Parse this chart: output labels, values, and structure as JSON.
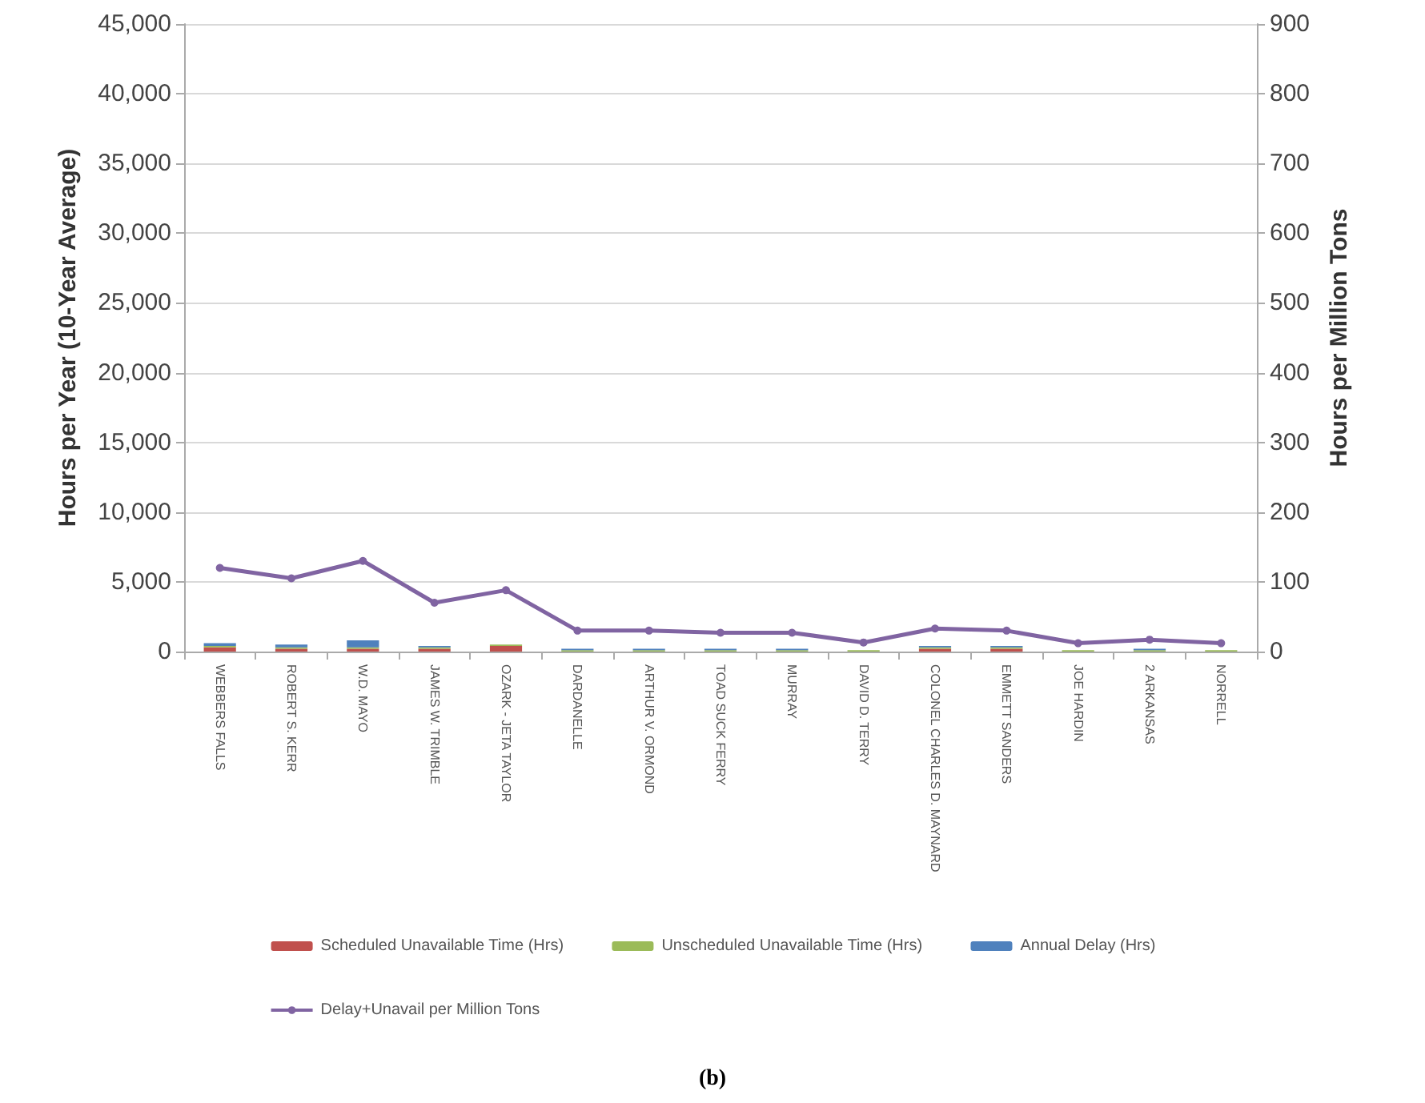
{
  "chart_data": {
    "type": "bar",
    "stacked": true,
    "ylabel": "Hours per Year (10-Year Average)",
    "y2label": "Hours per Million Tons",
    "categories": [
      "WEBBERS FALLS",
      "ROBERT S. KERR",
      "W.D. MAYO",
      "JAMES W. TRIMBLE",
      "OZARK - JETA TAYLOR",
      "DARDANELLE",
      "ARTHUR V. ORMOND",
      "TOAD SUCK FERRY",
      "MURRAY",
      "DAVID D. TERRY",
      "COLONEL CHARLES D. MAYNARD",
      "EMMETT SANDERS",
      "JOE HARDIN",
      "2 ARKANSAS",
      "NORRELL"
    ],
    "series": [
      {
        "name": "Scheduled Unavailable Time (Hrs)",
        "color": "#c0504d",
        "values": [
          300,
          200,
          200,
          200,
          400,
          0,
          0,
          0,
          0,
          0,
          200,
          200,
          0,
          0,
          0
        ]
      },
      {
        "name": "Unscheduled Unavailable Time (Hrs)",
        "color": "#9bbb59",
        "values": [
          100,
          100,
          100,
          100,
          100,
          100,
          100,
          100,
          100,
          100,
          100,
          100,
          100,
          100,
          100
        ]
      },
      {
        "name": "Annual Delay (Hrs)",
        "color": "#4f81bd",
        "values": [
          200,
          200,
          500,
          100,
          0,
          100,
          100,
          100,
          100,
          0,
          100,
          100,
          0,
          100,
          0
        ]
      },
      {
        "name": "Delay+Unavail per Million Tons",
        "type": "line",
        "axis": "y2",
        "color": "#8064a2",
        "values": [
          120,
          105,
          130,
          70,
          88,
          30,
          30,
          27,
          27,
          13,
          33,
          30,
          12,
          17,
          12
        ]
      }
    ],
    "ylim": [
      0,
      45000
    ],
    "yticks": [
      {
        "value": 0,
        "label": "0"
      },
      {
        "value": 5000,
        "label": "5,000"
      },
      {
        "value": 10000,
        "label": "10,000"
      },
      {
        "value": 15000,
        "label": "15,000"
      },
      {
        "value": 20000,
        "label": "20,000"
      },
      {
        "value": 25000,
        "label": "25,000"
      },
      {
        "value": 30000,
        "label": "30,000"
      },
      {
        "value": 35000,
        "label": "35,000"
      },
      {
        "value": 40000,
        "label": "40,000"
      },
      {
        "value": 45000,
        "label": "45,000"
      }
    ],
    "y2lim": [
      0,
      900
    ],
    "y2ticks": [
      0,
      100,
      200,
      300,
      400,
      500,
      600,
      700,
      800,
      900
    ],
    "grid": "y",
    "legend": "bottom",
    "marker": "circle",
    "annotations": [
      "(b)"
    ]
  }
}
